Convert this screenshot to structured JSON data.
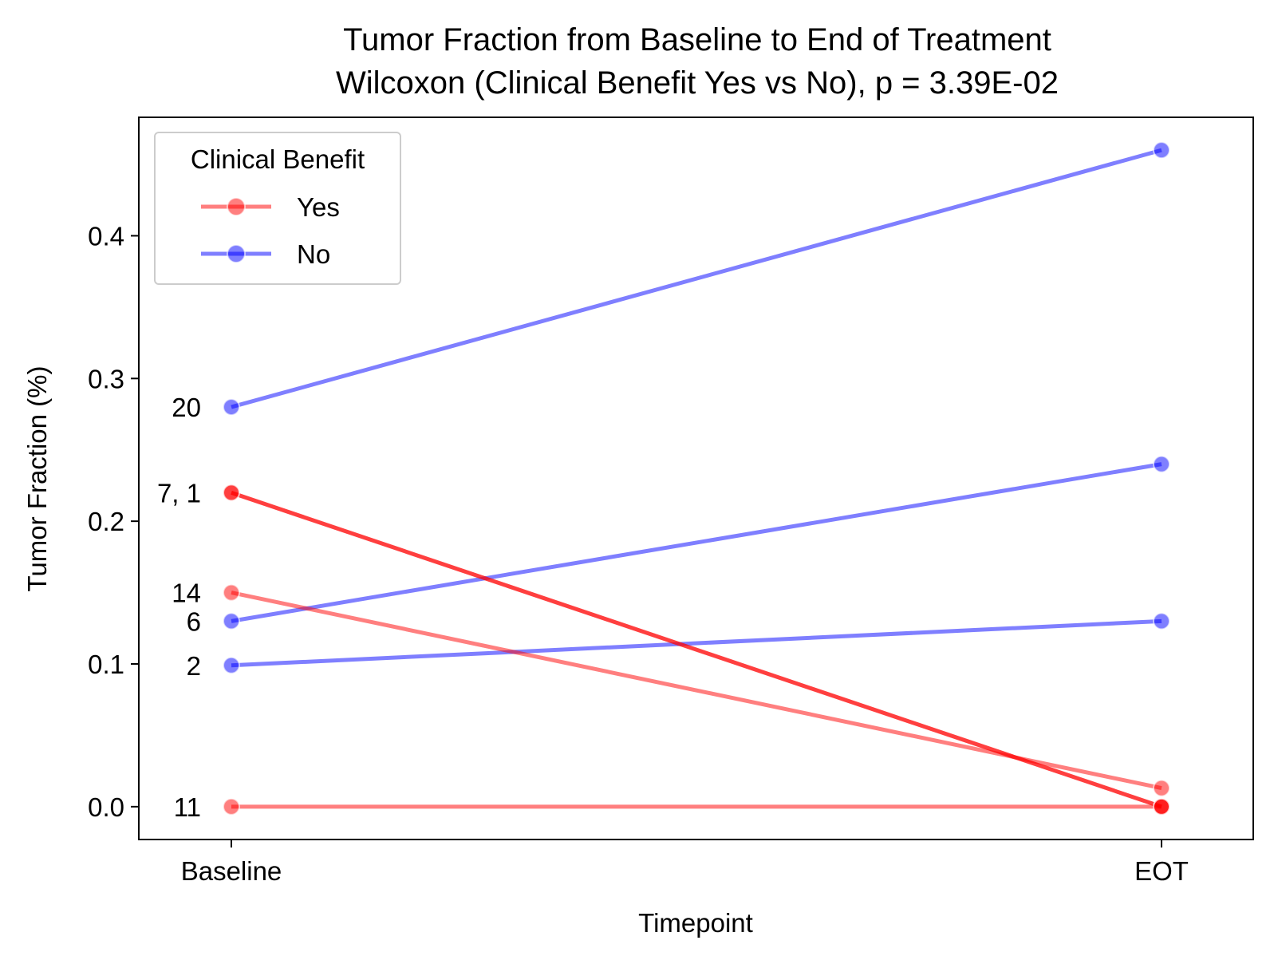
{
  "chart_data": {
    "type": "line",
    "title": "Tumor Fraction from Baseline to End of Treatment",
    "subtitle": "Wilcoxon (Clinical Benefit Yes vs No), p = 3.39E-02",
    "xlabel": "Timepoint",
    "ylabel": "Tumor Fraction (%)",
    "categories": [
      "Baseline",
      "EOT"
    ],
    "ylim": [
      -0.023,
      0.483
    ],
    "yticks": [
      0.0,
      0.1,
      0.2,
      0.3,
      0.4
    ],
    "ytick_labels": [
      "0.0",
      "0.1",
      "0.2",
      "0.3",
      "0.4"
    ],
    "grid": false,
    "legend": {
      "title": "Clinical Benefit",
      "placement": "top-left",
      "entries": [
        {
          "label": "Yes",
          "color": "#ff0000"
        },
        {
          "label": "No",
          "color": "#0000ff"
        }
      ]
    },
    "series": [
      {
        "group": "No",
        "color": "#0000ff",
        "values": [
          0.28,
          0.46
        ]
      },
      {
        "group": "No",
        "color": "#0000ff",
        "values": [
          0.13,
          0.24
        ]
      },
      {
        "group": "No",
        "color": "#0000ff",
        "values": [
          0.099,
          0.13
        ]
      },
      {
        "group": "Yes",
        "color": "#ff0000",
        "values": [
          0.22,
          0.0
        ]
      },
      {
        "group": "Yes",
        "color": "#ff0000",
        "values": [
          0.22,
          0.0
        ]
      },
      {
        "group": "Yes",
        "color": "#ff0000",
        "values": [
          0.15,
          0.013
        ]
      },
      {
        "group": "Yes",
        "color": "#ff0000",
        "values": [
          0.0,
          0.0
        ]
      }
    ],
    "annotations": [
      {
        "text": "20",
        "y": 0.28
      },
      {
        "text": "7, 1",
        "y": 0.22
      },
      {
        "text": "14",
        "y": 0.15
      },
      {
        "text": "6",
        "y": 0.13
      },
      {
        "text": "2",
        "y": 0.099
      },
      {
        "text": "11",
        "y": 0.0
      }
    ]
  }
}
